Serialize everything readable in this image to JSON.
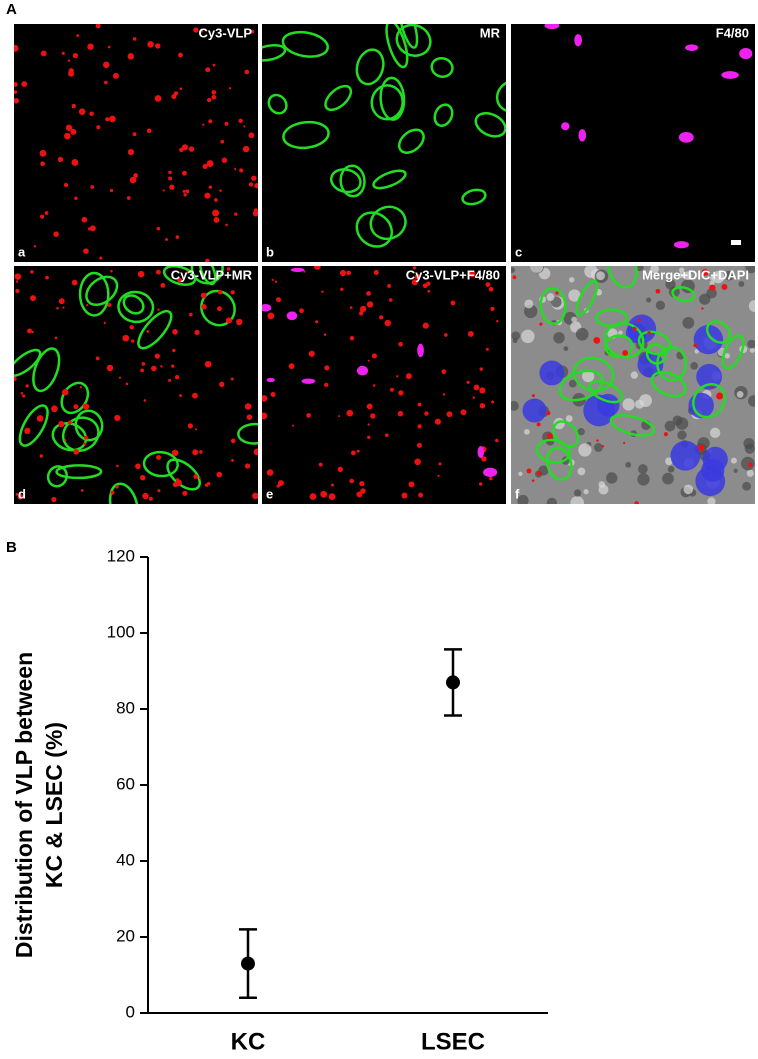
{
  "figure": {
    "panel_labels": [
      "A",
      "B"
    ],
    "images": [
      {
        "label": "Cy3-VLP",
        "letter": "a"
      },
      {
        "label": "MR",
        "letter": "b"
      },
      {
        "label": "F4/80",
        "letter": "c"
      },
      {
        "label": "Cy3-VLP+MR",
        "letter": "d"
      },
      {
        "label": "Cy3-VLP+F4/80",
        "letter": "e"
      },
      {
        "label": "Merge+DIC+DAPI",
        "letter": "f"
      }
    ]
  },
  "chart_data": {
    "type": "scatter",
    "ylabel": [
      "Distribution of VLP between",
      "KC & LSEC (%)"
    ],
    "categories": [
      "KC",
      "LSEC"
    ],
    "values": [
      13,
      87
    ],
    "errors": [
      9,
      8.7
    ],
    "color": "#000000",
    "ylim": [
      0,
      120
    ],
    "yticks": [
      0,
      20,
      40,
      60,
      80,
      100,
      120
    ]
  }
}
